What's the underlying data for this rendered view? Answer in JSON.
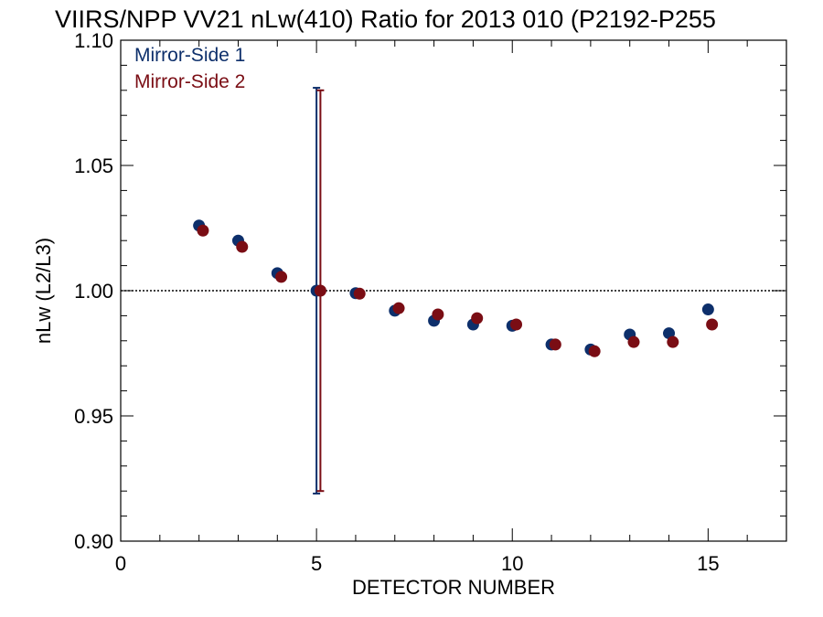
{
  "chart_data": {
    "type": "scatter",
    "title": "VIIRS/NPP VV21 nLw(410) Ratio for 2013 010 (P2192-P255",
    "xlabel": "DETECTOR NUMBER",
    "ylabel": "nLw (L2/L3)",
    "xlim": [
      0,
      17
    ],
    "ylim": [
      0.9,
      1.1
    ],
    "x_ticks": [
      "0",
      "5",
      "10",
      "15"
    ],
    "y_ticks": [
      "0.90",
      "0.95",
      "1.00",
      "1.05",
      "1.10"
    ],
    "reference_line": 1.0,
    "legend_placement": "top-left",
    "series": [
      {
        "name": "Mirror-Side 1",
        "color": "#0d2f6b",
        "x": [
          2,
          3,
          4,
          5,
          6,
          7,
          8,
          9,
          10,
          11,
          12,
          13,
          14,
          15
        ],
        "y": [
          1.026,
          1.02,
          1.007,
          1.0,
          0.999,
          0.992,
          0.988,
          0.9865,
          0.986,
          0.9785,
          0.9765,
          0.9825,
          0.983,
          0.9925
        ],
        "error_bar": {
          "x": 5,
          "low": 0.919,
          "high": 1.081
        }
      },
      {
        "name": "Mirror-Side 2",
        "color": "#7a0d14",
        "x": [
          2.1,
          3.1,
          4.1,
          5.1,
          6.1,
          7.1,
          8.1,
          9.1,
          10.1,
          11.1,
          12.1,
          13.1,
          14.1,
          15.1
        ],
        "y": [
          1.024,
          1.0175,
          1.0055,
          1.0,
          0.9988,
          0.993,
          0.9905,
          0.989,
          0.9865,
          0.9785,
          0.9758,
          0.9795,
          0.9795,
          0.9865
        ],
        "error_bar": {
          "x": 5.1,
          "low": 0.92,
          "high": 1.08
        }
      }
    ]
  }
}
